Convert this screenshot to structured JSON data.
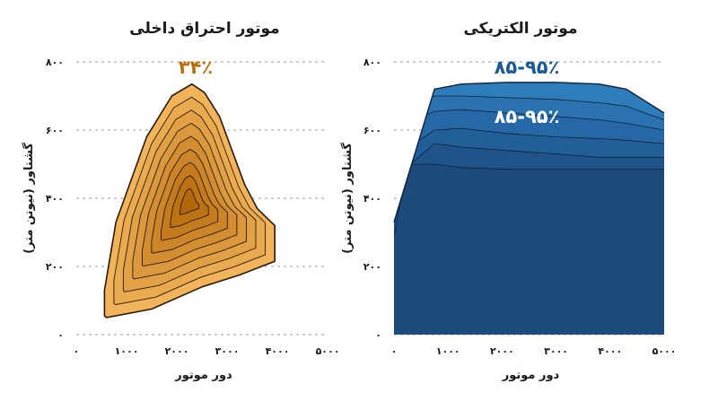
{
  "chart_data": [
    {
      "type": "area",
      "subtype": "contour",
      "title": "موتور احتراق داخلی",
      "xlabel": "دور موتور",
      "ylabel": "گشتاور (نیوتن متر)",
      "xlim": [
        0,
        5000
      ],
      "ylim": [
        0,
        800
      ],
      "xticks": [
        "۰",
        "۱۰۰۰",
        "۲۰۰۰",
        "۳۰۰۰",
        "۴۰۰۰",
        "۵۰۰۰"
      ],
      "yticks": [
        "۰",
        "۲۰۰",
        "۴۰۰",
        "۶۰۰",
        "۸۰۰"
      ],
      "grid": true,
      "peak_efficiency_label": "۳۴٪",
      "fill_color": "#f1b45a",
      "core_color": "#b5680a",
      "label_color": "#b8700f",
      "outer_boundary": {
        "x": [
          560,
          560,
          790,
          1400,
          1900,
          2300,
          2550,
          2850,
          3100,
          3350,
          3600,
          3950,
          3950,
          3250,
          2500,
          1500,
          600
        ],
        "y": [
          55,
          130,
          330,
          580,
          700,
          735,
          710,
          640,
          540,
          440,
          370,
          320,
          215,
          175,
          140,
          75,
          50
        ]
      },
      "contour_levels": 9,
      "peak": {
        "x": 2250,
        "y": 390
      }
    },
    {
      "type": "area",
      "subtype": "efficiency-bands",
      "title": "موتور الکتریکی",
      "xlabel": "دور موتور",
      "ylabel": "گشتاور (نیوتن متر)",
      "xlim": [
        0,
        5000
      ],
      "ylim": [
        0,
        800
      ],
      "xticks": [
        "۰",
        "۱۰۰۰",
        "۲۰۰۰",
        "۳۰۰۰",
        "۴۰۰۰",
        "۵۰۰۰"
      ],
      "yticks": [
        "۰",
        "۲۰۰",
        "۴۰۰",
        "۶۰۰",
        "۸۰۰"
      ],
      "grid": true,
      "efficiency_labels": [
        "۸۵-۹۵٪",
        "۸۵-۹۵٪"
      ],
      "label_colors": [
        "#1d5a92",
        "#ffffff"
      ],
      "band_colors": [
        "#1c4a7a",
        "#1f548a",
        "#225e98",
        "#2668a5",
        "#2a72b0",
        "#2e7cba"
      ],
      "envelope": {
        "x": [
          0,
          0,
          750,
          1250,
          2100,
          3000,
          3800,
          4300,
          5000,
          5000
        ],
        "y": [
          0,
          330,
          720,
          735,
          740,
          740,
          735,
          720,
          650,
          0
        ]
      },
      "band_boundaries": [
        {
          "x": [
            0,
            250,
            750,
            1250,
            2100,
            3000,
            3800,
            4300,
            5000
          ],
          "y": [
            290,
            500,
            500,
            490,
            485,
            485,
            485,
            485,
            485
          ]
        },
        {
          "x": [
            0,
            750,
            1250,
            2100,
            3000,
            3800,
            4300,
            5000
          ],
          "y": [
            460,
            560,
            550,
            540,
            530,
            520,
            520,
            520
          ]
        },
        {
          "x": [
            0,
            750,
            1250,
            2100,
            3000,
            3800,
            4300,
            5000
          ],
          "y": [
            520,
            600,
            605,
            590,
            580,
            575,
            570,
            560
          ]
        },
        {
          "x": [
            0,
            750,
            1250,
            2100,
            3000,
            3800,
            4300,
            5000
          ],
          "y": [
            600,
            655,
            660,
            650,
            640,
            630,
            620,
            600
          ]
        },
        {
          "x": [
            0,
            750,
            1250,
            2100,
            3000,
            3800,
            4300,
            5000
          ],
          "y": [
            650,
            700,
            700,
            695,
            690,
            680,
            670,
            630
          ]
        }
      ]
    }
  ]
}
